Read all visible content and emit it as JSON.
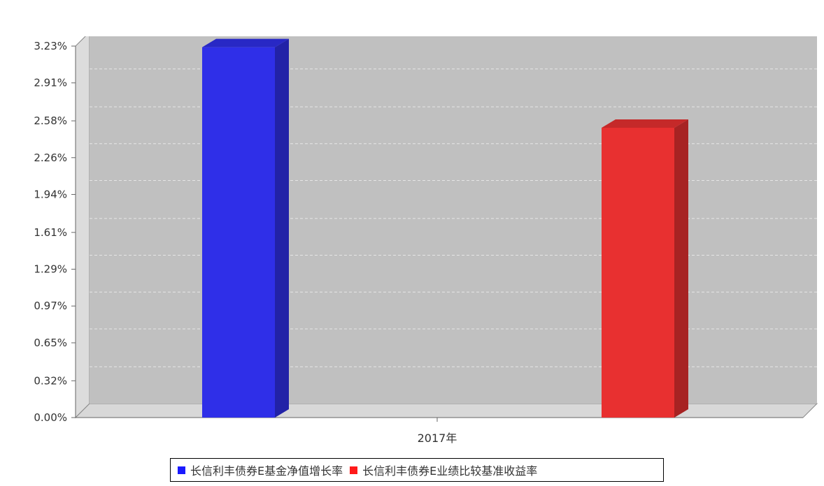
{
  "chart_data": {
    "type": "bar",
    "categories": [
      "2017年"
    ],
    "series": [
      {
        "name": "长信利丰债券E基金净值增长率",
        "values": [
          3.22
        ],
        "color": "#2f2fe8"
      },
      {
        "name": "长信利丰债券E业绩比较基准收益率",
        "values": [
          2.52
        ],
        "color": "#e83030"
      }
    ],
    "y_ticks": [
      "0.00%",
      "0.32%",
      "0.65%",
      "0.97%",
      "1.29%",
      "1.61%",
      "1.94%",
      "2.26%",
      "2.58%",
      "2.91%",
      "3.23%"
    ],
    "ylim": [
      0,
      3.23
    ],
    "y_unit": "%",
    "grid": true,
    "legend_position": "bottom",
    "style": "3d",
    "background": "#c0c0c0"
  }
}
